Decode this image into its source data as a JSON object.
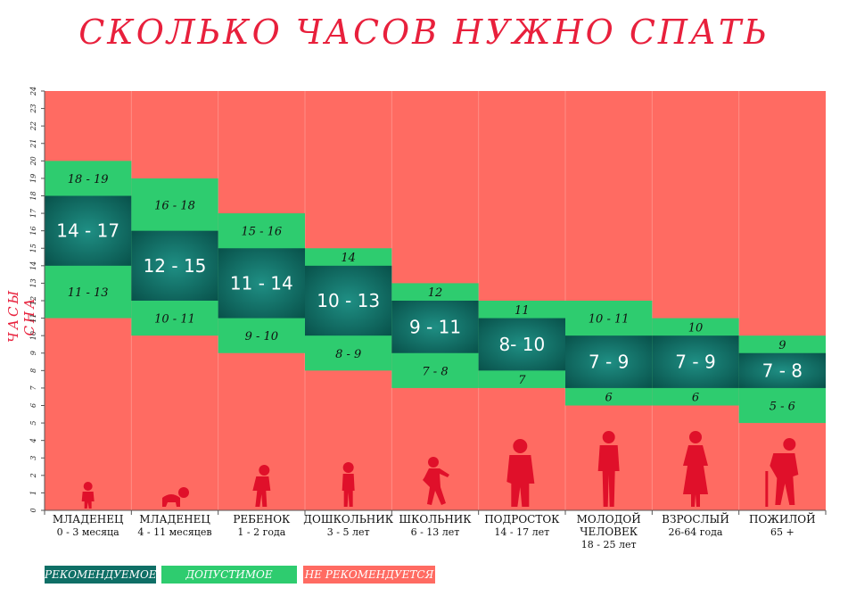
{
  "title": "СКОЛЬКО ЧАСОВ НУЖНО СПАТЬ",
  "colors": {
    "recommended": "#0f6f66",
    "acceptable": "#2ecc6f",
    "not_recommended": "#ff6b62",
    "title": "#e8203c",
    "silhouette": "#e0102a"
  },
  "chart_data": {
    "type": "range-bar",
    "title": "СКОЛЬКО ЧАСОВ НУЖНО СПАТЬ",
    "ylabel": "ЧАСЫ СНА",
    "ylim": [
      0,
      24
    ],
    "yticks": [
      "0",
      "1",
      "2",
      "3",
      "4",
      "5",
      "6",
      "7",
      "8",
      "9",
      "10",
      "11",
      "12",
      "13",
      "14",
      "15",
      "16",
      "17",
      "18",
      "19",
      "20",
      "21",
      "22",
      "23",
      "24"
    ],
    "categories": [
      {
        "name": "МЛАДЕНЕЦ",
        "age": "0 - 3 месяца",
        "acceptable": [
          11,
          20
        ],
        "recommended": [
          14,
          18
        ],
        "rec_label": "14 - 17",
        "upper_label": "18 - 19",
        "lower_label": "11 - 13",
        "icon": "infant-silhouette-icon"
      },
      {
        "name": "МЛАДЕНЕЦ",
        "age": "4 - 11 месяцев",
        "acceptable": [
          10,
          19
        ],
        "recommended": [
          12,
          16
        ],
        "rec_label": "12 - 15",
        "upper_label": "16 - 18",
        "lower_label": "10 - 11",
        "icon": "crawling-baby-silhouette-icon"
      },
      {
        "name": "РЕБЕНОК",
        "age": "1 - 2 года",
        "acceptable": [
          9,
          17
        ],
        "recommended": [
          11,
          15
        ],
        "rec_label": "11 - 14",
        "upper_label": "15 - 16",
        "lower_label": "9 - 10",
        "icon": "toddler-silhouette-icon"
      },
      {
        "name": "ДОШКОЛЬНИК",
        "age": "3 - 5 лет",
        "acceptable": [
          8,
          15
        ],
        "recommended": [
          10,
          14
        ],
        "rec_label": "10 - 13",
        "upper_label": "14",
        "lower_label": "8 - 9",
        "icon": "preschooler-silhouette-icon"
      },
      {
        "name": "ШКОЛЬНИК",
        "age": "6 - 13 лет",
        "acceptable": [
          7,
          13
        ],
        "recommended": [
          9,
          12
        ],
        "rec_label": "9 - 11",
        "upper_label": "12",
        "lower_label": "7 - 8",
        "icon": "schoolchild-silhouette-icon"
      },
      {
        "name": "ПОДРОСТОК",
        "age": "14 - 17 лет",
        "acceptable": [
          7,
          12
        ],
        "recommended": [
          8,
          11
        ],
        "rec_label": "8- 10",
        "upper_label": "11",
        "lower_label": "7",
        "icon": "teenager-silhouette-icon"
      },
      {
        "name": "МОЛОДОЙ ЧЕЛОВЕК",
        "age": "18 - 25 лет",
        "acceptable": [
          6,
          12
        ],
        "recommended": [
          7,
          10
        ],
        "rec_label": "7 - 9",
        "upper_label": "10 - 11",
        "lower_label": "6",
        "icon": "young-adult-silhouette-icon"
      },
      {
        "name": "ВЗРОСЛЫЙ",
        "age": "26-64 года",
        "acceptable": [
          6,
          11
        ],
        "recommended": [
          7,
          10
        ],
        "rec_label": "7 - 9",
        "upper_label": "10",
        "lower_label": "6",
        "icon": "adult-woman-silhouette-icon"
      },
      {
        "name": "ПОЖИЛОЙ",
        "age": "65 +",
        "acceptable": [
          5,
          10
        ],
        "recommended": [
          7,
          9
        ],
        "rec_label": "7 - 8",
        "upper_label": "9",
        "lower_label": "5 - 6",
        "icon": "elderly-with-cane-silhouette-icon"
      }
    ],
    "legend": [
      {
        "label": "РЕКОМЕНДУЕМОЕ",
        "color": "#0f6f66"
      },
      {
        "label": "ДОПУСТИМОЕ",
        "color": "#2ecc6f"
      },
      {
        "label": "НЕ РЕКОМЕНДУЕТСЯ",
        "color": "#ff6b62"
      }
    ],
    "legend_position": "bottom-left",
    "grid": true
  }
}
